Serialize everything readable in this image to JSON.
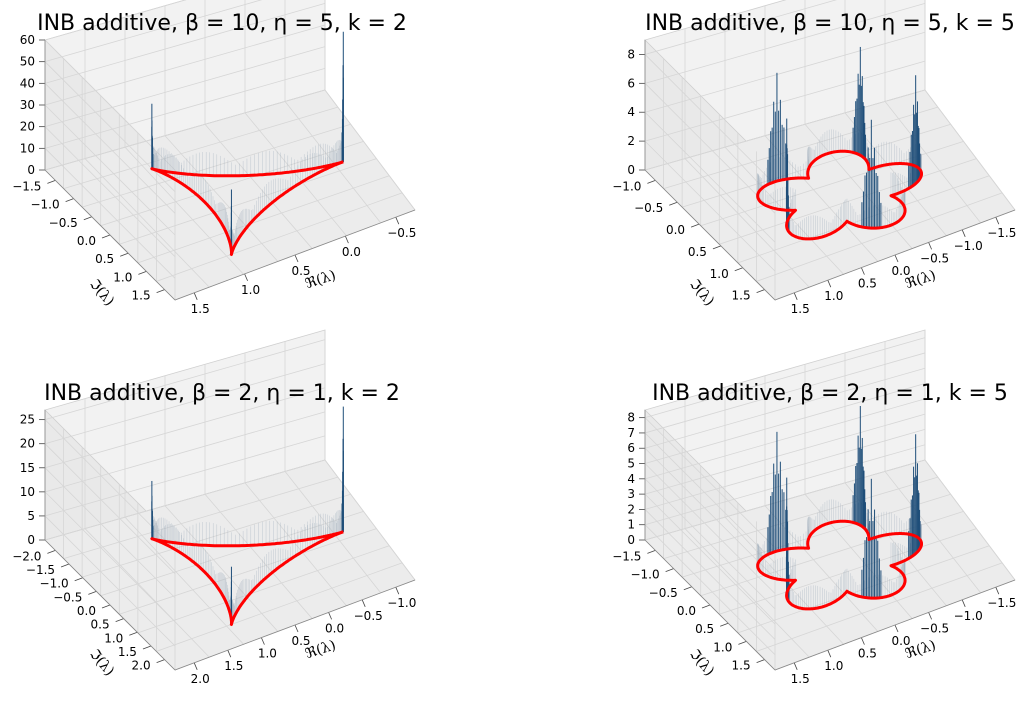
{
  "chart_data": [
    {
      "type": "surface3d",
      "title": "INB additive, $\\beta = 10$, $\\eta = 5$, $k = 2$",
      "title_display": "INB additive, β = 10, η = 5, k = 2",
      "params": {
        "beta": 10,
        "eta": 5,
        "k": 2
      },
      "xlabel": "ℜ(λ)",
      "ylabel": "ℑ(λ)",
      "x_ticks": [
        "1.5",
        "1.0",
        "0.5",
        "0.0",
        "−0.5"
      ],
      "y_ticks": [
        "−1.5",
        "−1.0",
        "−0.5",
        "0.0",
        "0.5",
        "1.0",
        "1.5"
      ],
      "z_ticks": [
        "0",
        "10",
        "20",
        "30",
        "40",
        "50",
        "60"
      ],
      "zlim": [
        0,
        60
      ],
      "boundary_color": "#ff0000",
      "surface_color": "#1f4e79",
      "peak_heights": [
        62,
        30,
        30
      ]
    },
    {
      "type": "surface3d",
      "title": "INB additive, $\\beta = 10$, $\\eta = 5$, $k = 5$",
      "title_display": "INB additive, β = 10, η = 5, k = 5",
      "params": {
        "beta": 10,
        "eta": 5,
        "k": 5
      },
      "xlabel": "ℜ(λ)",
      "ylabel": "ℑ(λ)",
      "x_ticks": [
        "1.5",
        "1.0",
        "0.5",
        "0.0",
        "−0.5",
        "−1.0",
        "−1.5"
      ],
      "y_ticks": [
        "−1.0",
        "−0.5",
        "0.0",
        "0.5",
        "1.0",
        "1.5"
      ],
      "z_ticks": [
        "0",
        "2",
        "4",
        "6",
        "8"
      ],
      "zlim": [
        0,
        9
      ],
      "boundary_color": "#ff0000",
      "surface_color": "#1f4e79",
      "peak_heights": [
        7.5,
        7.5,
        7.5,
        7.5,
        7.5
      ]
    },
    {
      "type": "surface3d",
      "title": "INB additive, $\\beta = 2$, $\\eta = 1$, $k = 2$",
      "title_display": "INB additive, β = 2, η = 1, k = 2",
      "params": {
        "beta": 2,
        "eta": 1,
        "k": 2
      },
      "xlabel": "ℜ(λ)",
      "ylabel": "ℑ(λ)",
      "x_ticks": [
        "2.0",
        "1.5",
        "1.0",
        "0.5",
        "0.0",
        "−0.5",
        "−1.0"
      ],
      "y_ticks": [
        "−2.0",
        "−1.5",
        "−1.0",
        "−0.5",
        "0.0",
        "0.5",
        "1.0",
        "1.5",
        "2.0"
      ],
      "z_ticks": [
        "0",
        "5",
        "10",
        "15",
        "20",
        "25"
      ],
      "zlim": [
        0,
        27
      ],
      "boundary_color": "#ff0000",
      "surface_color": "#1f4e79",
      "peak_heights": [
        26,
        12,
        12
      ]
    },
    {
      "type": "surface3d",
      "title": "INB additive, $\\beta = 2$, $\\eta = 1$, $k = 5$",
      "title_display": "INB additive, β = 2, η = 1, k = 5",
      "params": {
        "beta": 2,
        "eta": 1,
        "k": 5
      },
      "xlabel": "ℜ(λ)",
      "ylabel": "ℑ(λ)",
      "x_ticks": [
        "1.5",
        "1.0",
        "0.5",
        "0.0",
        "−0.5",
        "−1.0",
        "−1.5"
      ],
      "y_ticks": [
        "−1.5",
        "−1.0",
        "−0.5",
        "0.0",
        "0.5",
        "1.0",
        "1.5"
      ],
      "z_ticks": [
        "0",
        "1",
        "2",
        "3",
        "4",
        "5",
        "6",
        "7",
        "8"
      ],
      "zlim": [
        0,
        8.5
      ],
      "boundary_color": "#ff0000",
      "surface_color": "#1f4e79",
      "peak_heights": [
        7.8,
        7.8,
        7.8,
        7.8,
        7.8
      ]
    }
  ]
}
